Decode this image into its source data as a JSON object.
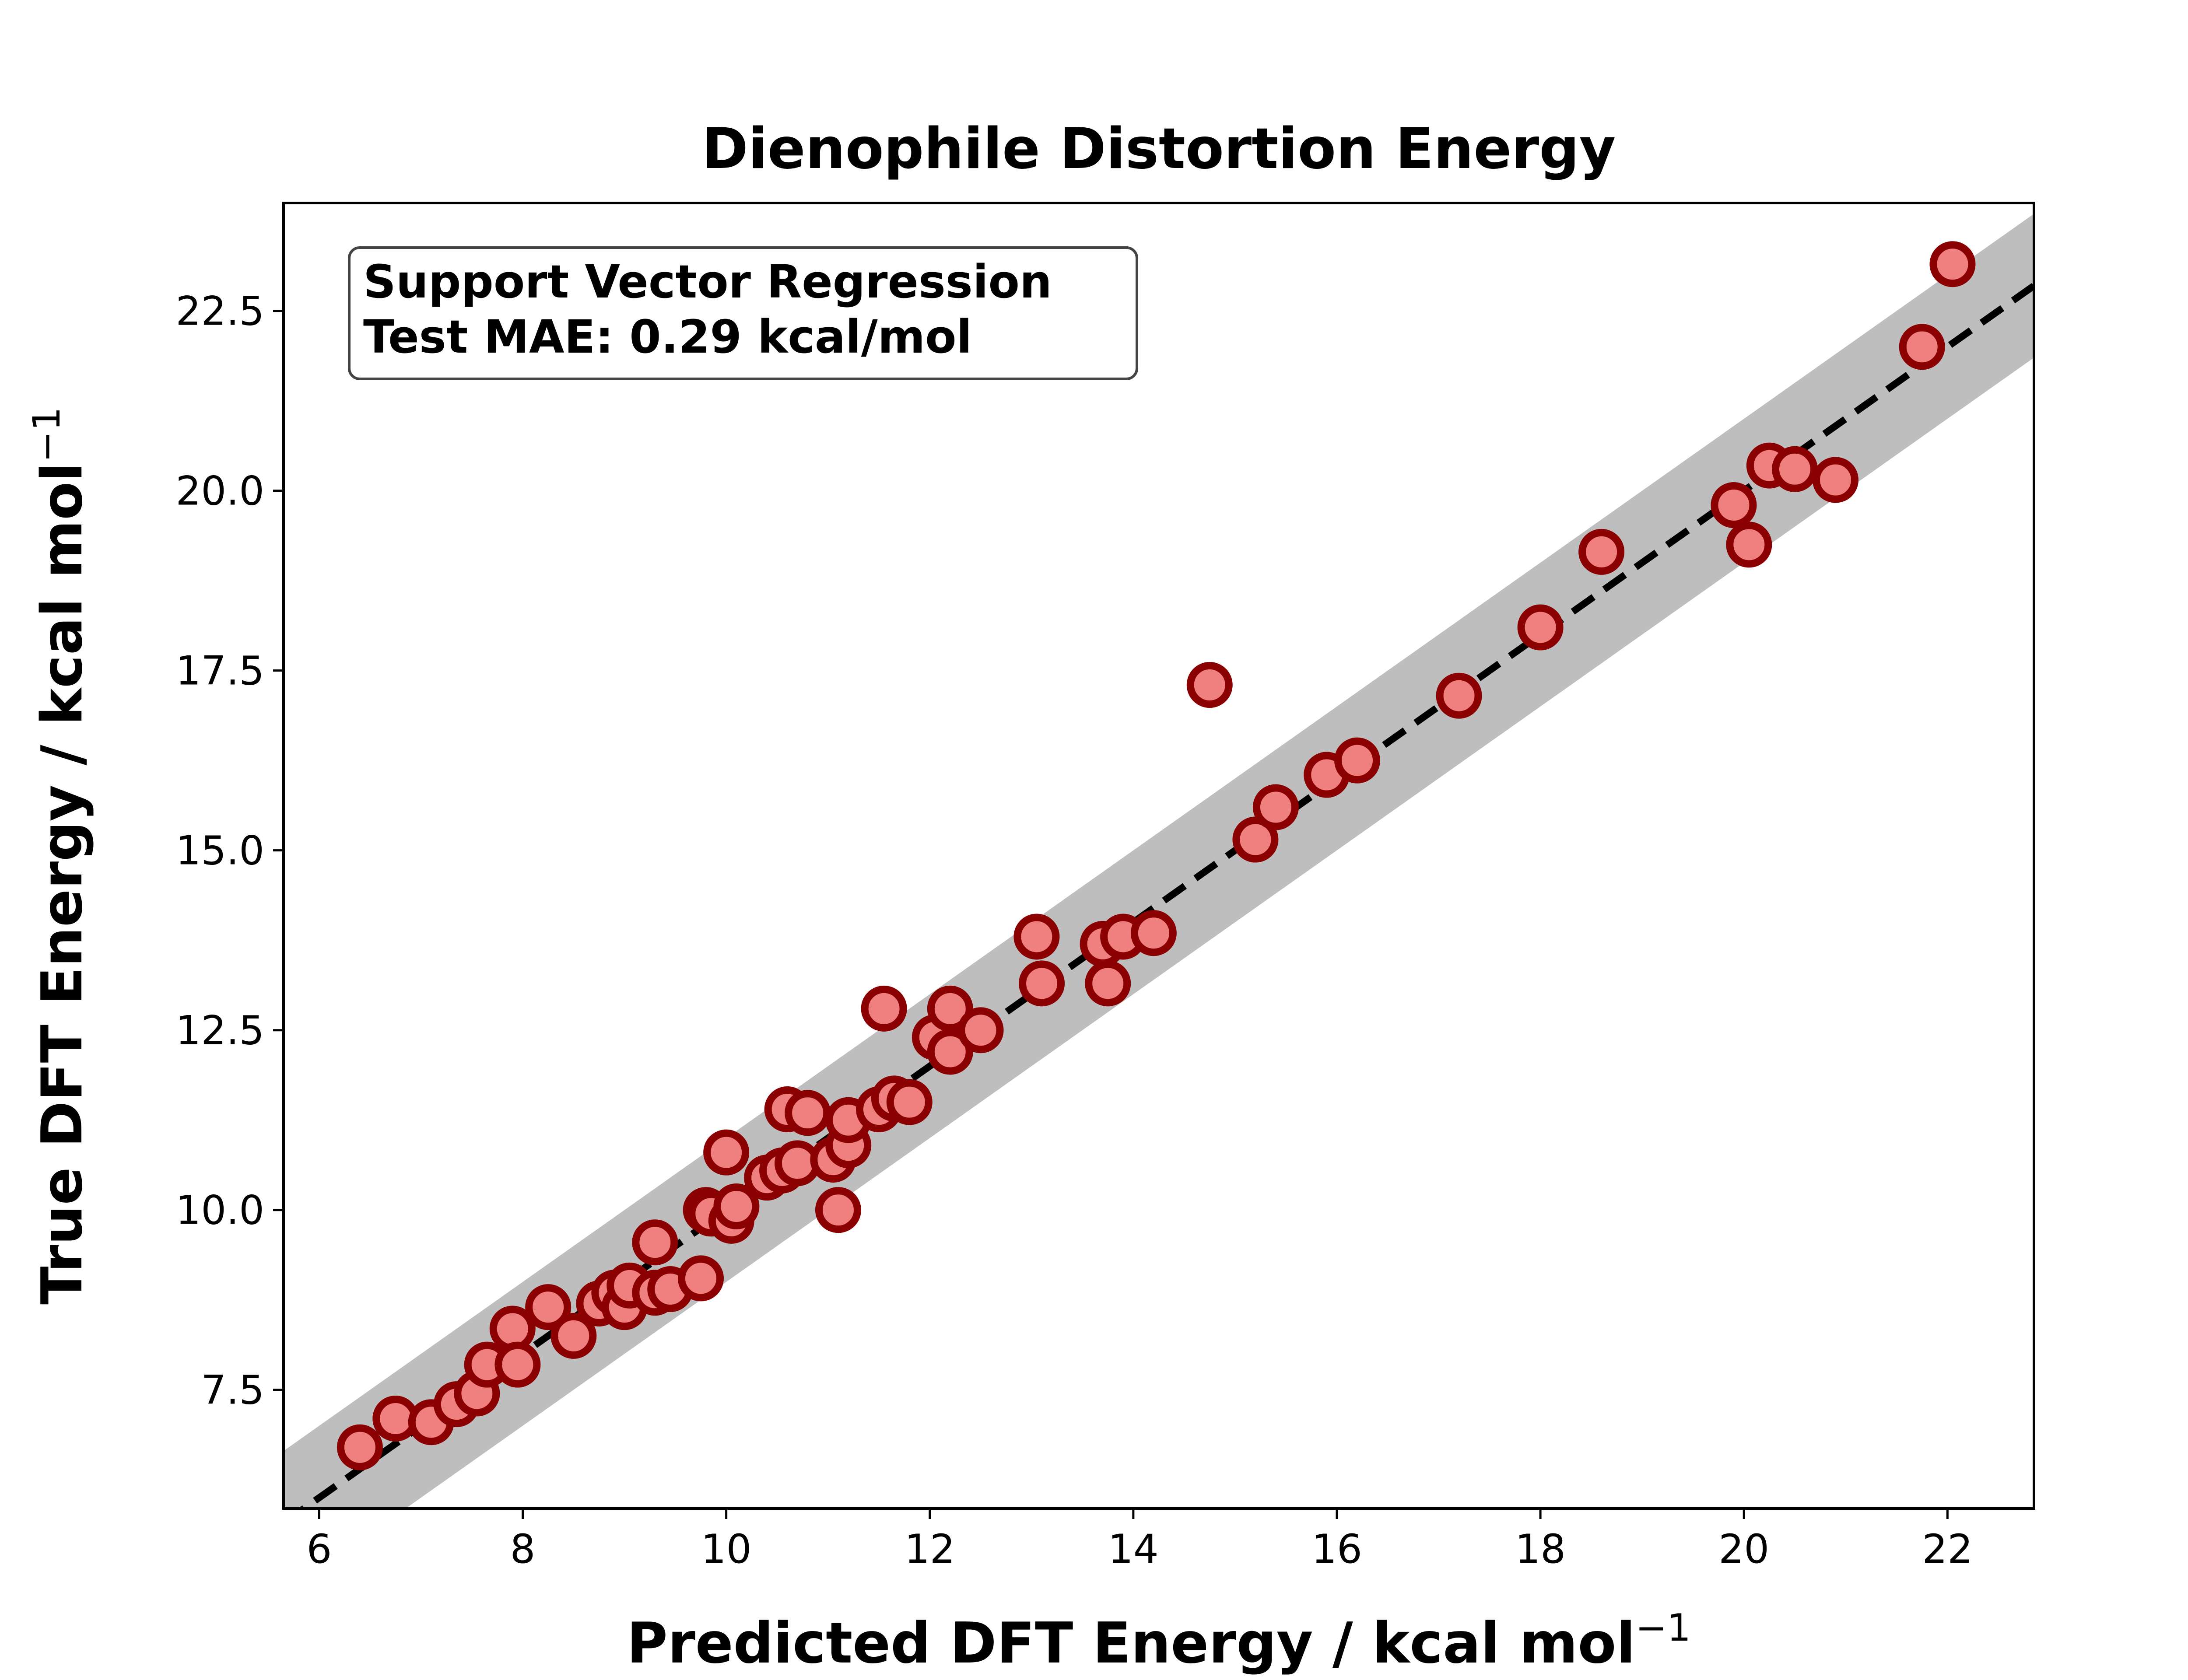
{
  "chart_data": {
    "type": "scatter",
    "title": "Dienophile Distortion Energy",
    "xlabel": "Predicted DFT Energy / kcal mol",
    "ylabel": "True DFT Energy / kcal mol",
    "unit_superscript": "−1",
    "xlim": [
      5.65,
      22.85
    ],
    "ylim": [
      5.85,
      24.0
    ],
    "xticks": [
      6,
      8,
      10,
      12,
      14,
      16,
      18,
      20,
      22
    ],
    "yticks": [
      7.5,
      10.0,
      12.5,
      15.0,
      17.5,
      20.0,
      22.5
    ],
    "xtick_labels": [
      "6",
      "8",
      "10",
      "12",
      "14",
      "16",
      "18",
      "20",
      "22"
    ],
    "ytick_labels": [
      "7.5",
      "10.0",
      "12.5",
      "15.0",
      "17.5",
      "20.0",
      "22.5"
    ],
    "parity_line": true,
    "band_halfwidth": 1.0,
    "annotation": [
      "Support Vector Regression",
      "Test MAE: 0.29 kcal/mol"
    ],
    "colors": {
      "marker_fill": "#f08080",
      "marker_edge": "#8b0000",
      "band": "#bebebe",
      "parity": "#000000"
    },
    "points": [
      {
        "x": 6.4,
        "y": 6.7
      },
      {
        "x": 6.75,
        "y": 7.1
      },
      {
        "x": 7.1,
        "y": 7.05
      },
      {
        "x": 7.35,
        "y": 7.3
      },
      {
        "x": 7.55,
        "y": 7.45
      },
      {
        "x": 7.65,
        "y": 7.85
      },
      {
        "x": 7.9,
        "y": 8.35
      },
      {
        "x": 7.95,
        "y": 7.85
      },
      {
        "x": 8.25,
        "y": 8.65
      },
      {
        "x": 8.5,
        "y": 8.25
      },
      {
        "x": 8.75,
        "y": 8.7
      },
      {
        "x": 8.9,
        "y": 8.85
      },
      {
        "x": 9.0,
        "y": 8.65
      },
      {
        "x": 9.05,
        "y": 8.95
      },
      {
        "x": 9.3,
        "y": 8.85
      },
      {
        "x": 9.3,
        "y": 9.55
      },
      {
        "x": 9.45,
        "y": 8.9
      },
      {
        "x": 9.75,
        "y": 9.05
      },
      {
        "x": 9.8,
        "y": 10.0
      },
      {
        "x": 9.85,
        "y": 9.95
      },
      {
        "x": 10.0,
        "y": 10.8
      },
      {
        "x": 10.05,
        "y": 9.85
      },
      {
        "x": 10.1,
        "y": 10.05
      },
      {
        "x": 10.4,
        "y": 10.45
      },
      {
        "x": 10.55,
        "y": 10.55
      },
      {
        "x": 10.6,
        "y": 11.4
      },
      {
        "x": 10.7,
        "y": 10.65
      },
      {
        "x": 10.8,
        "y": 11.35
      },
      {
        "x": 11.05,
        "y": 10.7
      },
      {
        "x": 11.1,
        "y": 10.0
      },
      {
        "x": 11.2,
        "y": 10.9
      },
      {
        "x": 11.2,
        "y": 11.25
      },
      {
        "x": 11.5,
        "y": 11.4
      },
      {
        "x": 11.55,
        "y": 12.8
      },
      {
        "x": 11.65,
        "y": 11.55
      },
      {
        "x": 11.8,
        "y": 11.5
      },
      {
        "x": 12.05,
        "y": 12.4
      },
      {
        "x": 12.2,
        "y": 12.8
      },
      {
        "x": 12.2,
        "y": 12.2
      },
      {
        "x": 12.5,
        "y": 12.5
      },
      {
        "x": 13.05,
        "y": 13.8
      },
      {
        "x": 13.1,
        "y": 13.15
      },
      {
        "x": 13.7,
        "y": 13.7
      },
      {
        "x": 13.75,
        "y": 13.15
      },
      {
        "x": 13.9,
        "y": 13.8
      },
      {
        "x": 14.2,
        "y": 13.85
      },
      {
        "x": 14.75,
        "y": 17.3
      },
      {
        "x": 15.2,
        "y": 15.15
      },
      {
        "x": 15.4,
        "y": 15.6
      },
      {
        "x": 15.9,
        "y": 16.05
      },
      {
        "x": 16.2,
        "y": 16.25
      },
      {
        "x": 17.2,
        "y": 17.15
      },
      {
        "x": 18.0,
        "y": 18.1
      },
      {
        "x": 18.6,
        "y": 19.15
      },
      {
        "x": 19.9,
        "y": 19.8
      },
      {
        "x": 20.05,
        "y": 19.25
      },
      {
        "x": 20.25,
        "y": 20.35
      },
      {
        "x": 20.5,
        "y": 20.3
      },
      {
        "x": 20.9,
        "y": 20.15
      },
      {
        "x": 21.75,
        "y": 22.0
      },
      {
        "x": 22.05,
        "y": 23.15
      }
    ]
  }
}
